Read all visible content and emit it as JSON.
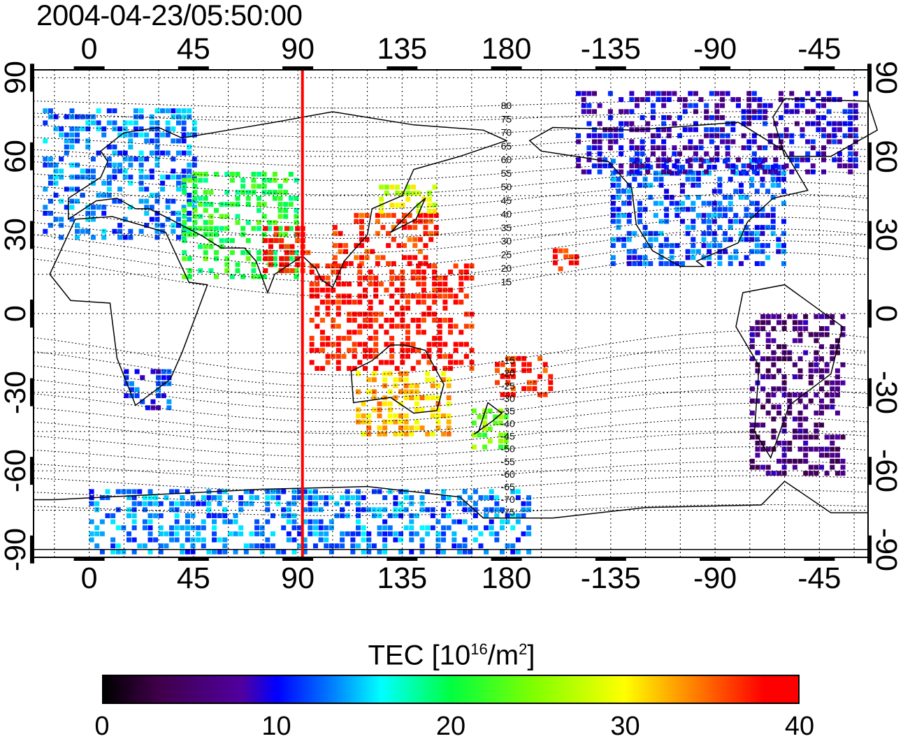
{
  "timestamp": "2004-04-23/05:50:00",
  "map": {
    "lon_ticks_labels": [
      "0",
      "45",
      "90",
      "135",
      "180",
      "-135",
      "-90",
      "-45"
    ],
    "lon_ticks_deg": [
      0,
      45,
      90,
      135,
      180,
      225,
      270,
      315
    ],
    "lat_ticks_labels": [
      "90",
      "60",
      "30",
      "0",
      "-30",
      "-60",
      "-90"
    ],
    "lat_ticks_deg": [
      90,
      60,
      30,
      0,
      -30,
      -60,
      -90
    ],
    "lon_range": [
      -24,
      336
    ],
    "lat_range": [
      -93,
      93
    ],
    "meridian_marker": {
      "lon": 92,
      "color": "#ff0000"
    },
    "magnetic_lat_labels": [
      "80",
      "75",
      "70",
      "65",
      "60",
      "55",
      "50",
      "45",
      "40",
      "35",
      "30",
      "25",
      "20",
      "15",
      "-15",
      "-20",
      "-25",
      "-30",
      "-35",
      "-40",
      "-45",
      "-50",
      "-55",
      "-60",
      "-65",
      "-70",
      "-75"
    ]
  },
  "colorbar": {
    "title_prefix": "TEC  [10",
    "title_exp1": "16",
    "title_mid": "/m",
    "title_exp2": "2",
    "title_suffix": "]",
    "min": 0,
    "max": 40,
    "tick_labels": [
      "0",
      "10",
      "20",
      "30",
      "40"
    ],
    "tick_values": [
      0,
      10,
      20,
      30,
      40
    ]
  },
  "tec_regions": [
    {
      "name": "europe",
      "lon": [
        -20,
        45
      ],
      "lat": [
        30,
        80
      ],
      "tec": 13
    },
    {
      "name": "west-asia",
      "lon": [
        40,
        90
      ],
      "lat": [
        15,
        55
      ],
      "tec": 21
    },
    {
      "name": "india",
      "lon": [
        75,
        95
      ],
      "lat": [
        15,
        35
      ],
      "tec": 38
    },
    {
      "name": "east-asia",
      "lon": [
        105,
        150
      ],
      "lat": [
        20,
        40
      ],
      "tec": 37
    },
    {
      "name": "japan-north",
      "lon": [
        125,
        150
      ],
      "lat": [
        40,
        50
      ],
      "tec": 28
    },
    {
      "name": "se-asia",
      "lon": [
        95,
        165
      ],
      "lat": [
        -20,
        20
      ],
      "tec": 38
    },
    {
      "name": "australia",
      "lon": [
        115,
        155
      ],
      "lat": [
        -45,
        -20
      ],
      "tec": 32
    },
    {
      "name": "new-zealand",
      "lon": [
        165,
        180
      ],
      "lat": [
        -50,
        -35
      ],
      "tec": 24
    },
    {
      "name": "pacific-south",
      "lon": [
        175,
        200
      ],
      "lat": [
        -30,
        -15
      ],
      "tec": 37
    },
    {
      "name": "hawaii",
      "lon": [
        200,
        210
      ],
      "lat": [
        18,
        25
      ],
      "tec": 38
    },
    {
      "name": "north-america",
      "lon": [
        225,
        300
      ],
      "lat": [
        20,
        60
      ],
      "tec": 12
    },
    {
      "name": "canada",
      "lon": [
        210,
        330
      ],
      "lat": [
        55,
        85
      ],
      "tec": 9
    },
    {
      "name": "south-america",
      "lon": [
        285,
        325
      ],
      "lat": [
        -60,
        0
      ],
      "tec": 6
    },
    {
      "name": "south-africa",
      "lon": [
        15,
        35
      ],
      "lat": [
        -35,
        -20
      ],
      "tec": 11
    },
    {
      "name": "antarctica",
      "lon": [
        0,
        190
      ],
      "lat": [
        -90,
        -65
      ],
      "tec": 13
    }
  ]
}
